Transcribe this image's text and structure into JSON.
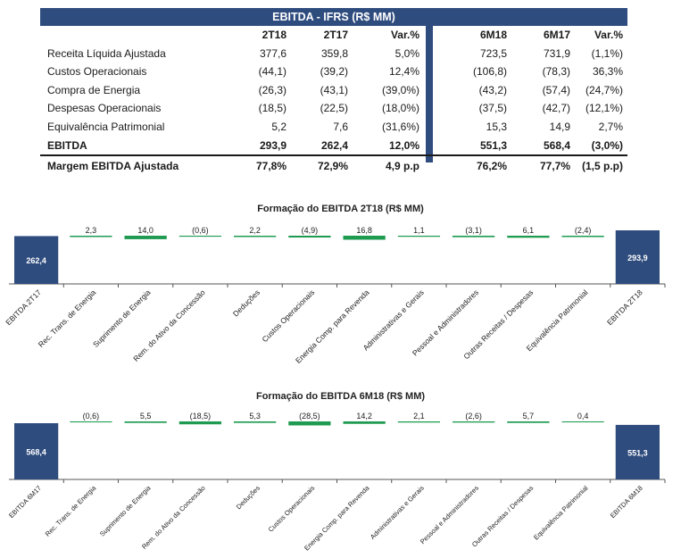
{
  "table": {
    "title": "EBITDA - IFRS (R$ MM)",
    "columns": [
      "2T18",
      "2T17",
      "Var.%",
      "6M18",
      "6M17",
      "Var.%"
    ],
    "rows": [
      {
        "label": "Receita Líquida Ajustada",
        "values": [
          "377,6",
          "359,8",
          "5,0%",
          "723,5",
          "731,9",
          "(1,1%)"
        ]
      },
      {
        "label": "Custos Operacionais",
        "values": [
          "(44,1)",
          "(39,2)",
          "12,4%",
          "(106,8)",
          "(78,3)",
          "36,3%"
        ]
      },
      {
        "label": "Compra de Energia",
        "values": [
          "(26,3)",
          "(43,1)",
          "(39,0%)",
          "(43,2)",
          "(57,4)",
          "(24,7%)"
        ]
      },
      {
        "label": "Despesas Operacionais",
        "values": [
          "(18,5)",
          "(22,5)",
          "(18,0%)",
          "(37,5)",
          "(42,7)",
          "(12,1%)"
        ]
      },
      {
        "label": "Equivalência Patrimonial",
        "values": [
          "5,2",
          "7,6",
          "(31,6%)",
          "15,3",
          "14,9",
          "2,7%"
        ]
      }
    ],
    "ebitda": {
      "label": "EBITDA",
      "values": [
        "293,9",
        "262,4",
        "12,0%",
        "551,3",
        "568,4",
        "(3,0%)"
      ]
    },
    "margin": {
      "label": "Margem EBITDA Ajustada",
      "values": [
        "77,8%",
        "72,9%",
        "4,9 p.p",
        "76,2%",
        "77,7%",
        "(1,5 p.p)"
      ]
    }
  },
  "colors": {
    "navy": "#2f4c7e",
    "green": "#1e9b50",
    "text": "#1a1a1a"
  },
  "chart_data": [
    {
      "type": "bar",
      "title": "Formação do EBITDA 2T18 (R$ MM)",
      "categories": [
        "EBITDA 2T17",
        "Rec. Trans. de Energia",
        "Suprimento de Energia",
        "Rem. do Ativo da Concessão",
        "Deduções",
        "Custos Operacionais",
        "Energia Comp. para Revenda",
        "Administrativas e Gerais",
        "Pessoal e Administradores",
        "Outras Receitas / Despesas",
        "Equivalência Patrimonial",
        "EBITDA 2T18"
      ],
      "labels": [
        "262,4",
        "2,3",
        "14,0",
        "(0,6)",
        "2,2",
        "(4,9)",
        "16,8",
        "1,1",
        "(3,1)",
        "6,1",
        "(2,4)",
        "293,9"
      ],
      "values": [
        262.4,
        2.3,
        14.0,
        -0.6,
        2.2,
        -4.9,
        16.8,
        1.1,
        -3.1,
        6.1,
        -2.4,
        293.9
      ],
      "kinds": [
        "total",
        "delta",
        "delta",
        "delta",
        "delta",
        "delta",
        "delta",
        "delta",
        "delta",
        "delta",
        "delta",
        "total"
      ]
    },
    {
      "type": "bar",
      "title": "Formação do EBITDA 6M18  (R$ MM)",
      "categories": [
        "EBITDA 6M17",
        "Rec. Trans. de Energia",
        "Suprimento de Energia",
        "Rem. do Ativo da Concessão",
        "Deduções",
        "Custos Operacionais",
        "Energia Comp. para Revenda",
        "Administrativas e Gerais",
        "Pessoal e Administradores",
        "Outras Receitas / Despesas",
        "Equivalência Patrimonial",
        "EBITDA 6M18"
      ],
      "labels": [
        "568,4",
        "(0,6)",
        "5,5",
        "(18,5)",
        "5,3",
        "(28,5)",
        "14,2",
        "2,1",
        "(2,6)",
        "5,7",
        "0,4",
        "551,3"
      ],
      "values": [
        568.4,
        -0.6,
        5.5,
        -18.5,
        5.3,
        -28.5,
        14.2,
        2.1,
        -2.6,
        5.7,
        0.4,
        551.3
      ],
      "kinds": [
        "total",
        "delta",
        "delta",
        "delta",
        "delta",
        "delta",
        "delta",
        "delta",
        "delta",
        "delta",
        "delta",
        "total"
      ]
    }
  ]
}
